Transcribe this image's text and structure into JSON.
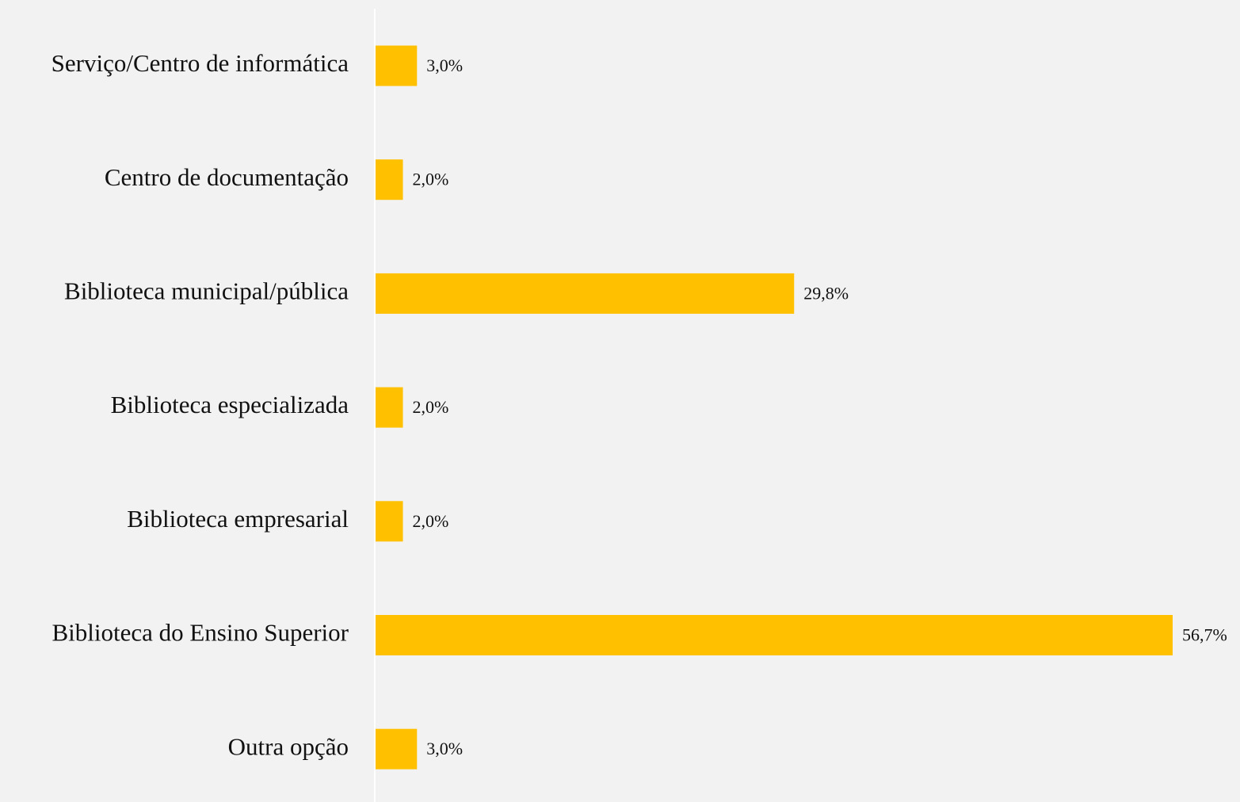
{
  "chart_data": {
    "type": "bar",
    "orientation": "horizontal",
    "categories": [
      "Serviço/Centro de informática",
      "Centro de documentação",
      "Biblioteca municipal/pública",
      "Biblioteca especializada",
      "Biblioteca empresarial",
      "Biblioteca do Ensino Superior",
      "Outra opção"
    ],
    "values": [
      3.0,
      2.0,
      29.8,
      2.0,
      2.0,
      56.7,
      3.0
    ],
    "value_labels": [
      "3,0%",
      "2,0%",
      "29,8%",
      "2,0%",
      "2,0%",
      "56,7%",
      "3,0%"
    ],
    "color": "#ffc000"
  }
}
